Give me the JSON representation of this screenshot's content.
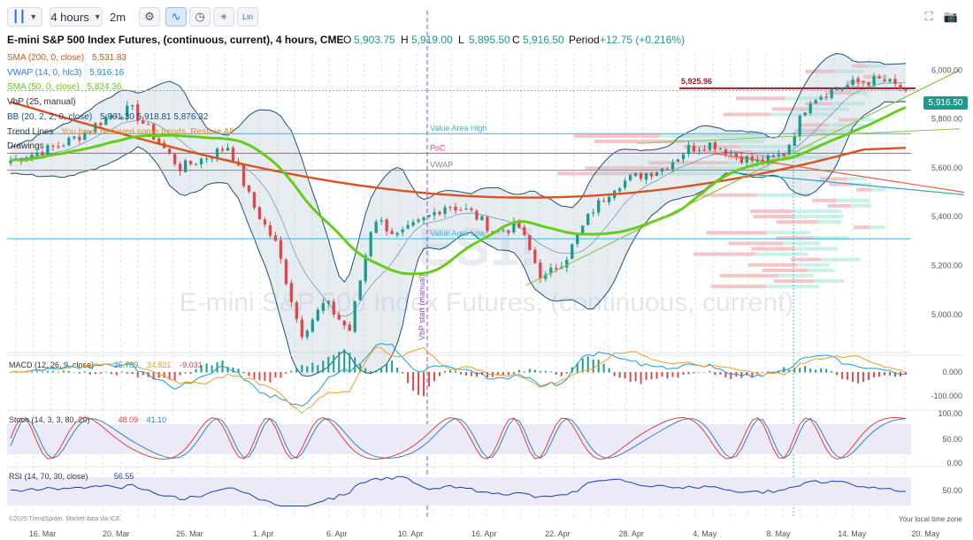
{
  "toolbar": {
    "interval": "4 hours",
    "replay": "2m",
    "lin": "Lin"
  },
  "header": {
    "title": "E-mini S&P 500 Index Futures, (continuous, current), 4 hours, CME",
    "o_label": "O",
    "o_value": "5,903.75",
    "h_label": "H",
    "h_value": "5,919.00",
    "l_label": "L",
    "l_value": "5,895.50",
    "c_label": "C",
    "c_value": "5,916.50",
    "period_label": "Period",
    "period_value": "+12.75 (+0.216%)"
  },
  "legend": [
    {
      "name": "SMA (200, 0, close)",
      "value": "5,531.83",
      "color": "#d9531e"
    },
    {
      "name": "VWAP (14, 0, hlc3)",
      "value": "5,916.16",
      "color": "#2f7fd8"
    },
    {
      "name": "SMA (50, 0, close)",
      "value": "5,824.36",
      "color": "#66cc1a"
    },
    {
      "name": "VbP (25, manual)",
      "value": "",
      "color": "#333333"
    },
    {
      "name": "BB (20, 2, 2, 0, close)",
      "value": "5,961.30  5,918.81  5,876.32",
      "color": "#1f4e79"
    },
    {
      "name": "Trend Lines",
      "value": "You have removed some trends. Restore All",
      "color": "#333333"
    },
    {
      "name": "Drawings",
      "value": "",
      "color": "#333333"
    }
  ],
  "annotations": {
    "price_5925": "5,925.96",
    "value_area_high": "Value Area High",
    "poc": "PoC",
    "vwap": "VWAP",
    "value_area_low": "Value Area Low",
    "vbp_start": "VbP start (manual)",
    "watermark": "E-mini S&P 500 Index Futures, (continuous, current)",
    "watermark_symbol": "ES1!"
  },
  "last_price": "5,916.50",
  "panes": {
    "macd": {
      "label": "MACD (12, 26, 9, close)",
      "v1": "25.789",
      "v2": "34.821",
      "v3": "-9.031",
      "c1": "#1e9ad6",
      "c2": "#f0a020",
      "c3": "#e0403a"
    },
    "stoch": {
      "label": "Stoch (14, 3, 3, 80, 20)",
      "v1": "48.09",
      "v2": "41.10",
      "c1": "#e0403a",
      "c2": "#2f7fd8"
    },
    "rsi": {
      "label": "RSI (14, 70, 30, close)",
      "v1": "56.55",
      "c1": "#1c3faa"
    }
  },
  "footer": {
    "copyright": "©2025 TrendSpider. Market data via ICE.",
    "timezone": "Your local time zone"
  },
  "colors": {
    "up": "#1a9c8c",
    "down": "#e04848",
    "sma200": "#d9531e",
    "sma50": "#66cc1a",
    "bb": "#1f4e79",
    "bbfill": "#b9c8d8",
    "vah": "#35b9e0",
    "poc": "#d9468c",
    "val": "#35b9e0",
    "vbp_red": "#f4b7bc",
    "vbp_teal": "#bfeee4",
    "res_line": "#9b1c2a",
    "trend_green": "#8bc34a"
  },
  "chart_data": {
    "type": "candlestick",
    "title": "E-mini S&P 500 Index Futures, (continuous, current), 4 hours, CME",
    "x_ticks": [
      "16. Mar",
      "20. Mar",
      "26. Mar",
      "1. Apr",
      "6. Apr",
      "10. Apr",
      "16. Apr",
      "22. Apr",
      "28. Apr",
      "4. May",
      "8. May",
      "14. May",
      "20. May"
    ],
    "y_ticks": [
      "5,000.00",
      "5,200.00",
      "5,400.00",
      "5,600.00",
      "5,800.00",
      "6,000.00"
    ],
    "y_ticks_values": [
      5000,
      5200,
      5400,
      5600,
      5800,
      6000
    ],
    "ylim": [
      4840,
      6070
    ],
    "close_path": [
      [
        "16. Mar",
        5630
      ],
      [
        "18. Mar",
        5660
      ],
      [
        "20. Mar",
        5690
      ],
      [
        "22. Mar",
        5740
      ],
      [
        "25. Mar",
        5810
      ],
      [
        "26. Mar",
        5840
      ],
      [
        "28. Mar",
        5720
      ],
      [
        "30. Mar",
        5600
      ],
      [
        "1. Apr",
        5640
      ],
      [
        "2. Apr",
        5690
      ],
      [
        "3. Apr",
        5450
      ],
      [
        "4. Apr",
        5280
      ],
      [
        "6. Apr",
        4920
      ],
      [
        "7. Apr",
        5050
      ],
      [
        "8. Apr",
        4930
      ],
      [
        "9. Apr",
        5400
      ],
      [
        "10. Apr",
        5320
      ],
      [
        "11. Apr",
        5380
      ],
      [
        "14. Apr",
        5450
      ],
      [
        "15. Apr",
        5420
      ],
      [
        "16. Apr",
        5340
      ],
      [
        "18. Apr",
        5360
      ],
      [
        "21. Apr",
        5140
      ],
      [
        "22. Apr",
        5240
      ],
      [
        "24. Apr",
        5420
      ],
      [
        "26. Apr",
        5530
      ],
      [
        "28. Apr",
        5570
      ],
      [
        "1. May",
        5600
      ],
      [
        "2. May",
        5680
      ],
      [
        "4. May",
        5700
      ],
      [
        "5. May",
        5650
      ],
      [
        "7. May",
        5620
      ],
      [
        "8. May",
        5660
      ],
      [
        "12. May",
        5880
      ],
      [
        "13. May",
        5920
      ],
      [
        "15. May",
        5950
      ],
      [
        "16. May",
        5960
      ],
      [
        "19. May",
        5916.5
      ]
    ],
    "overlays": {
      "sma200_value": 5531.83,
      "sma50_value": 5824.36,
      "vwap_value": 5916.16,
      "bb": [
        5961.3,
        5918.81,
        5876.32
      ],
      "value_area_high": 5740,
      "poc": 5660,
      "vwap_level": 5590,
      "value_area_low": 5310,
      "resistance": 5925.96
    },
    "macd": {
      "macd": 25.789,
      "signal": 34.821,
      "hist": -9.031,
      "y_ticks": [
        "0.000",
        "-100.000"
      ]
    },
    "stoch": {
      "k": 48.09,
      "d": 41.1,
      "upper": 80,
      "lower": 20,
      "y_ticks": [
        "100.00",
        "50.00",
        "0.00"
      ]
    },
    "rsi": {
      "value": 56.55,
      "upper": 70,
      "lower": 30,
      "y_ticks": [
        "50.00"
      ]
    }
  }
}
